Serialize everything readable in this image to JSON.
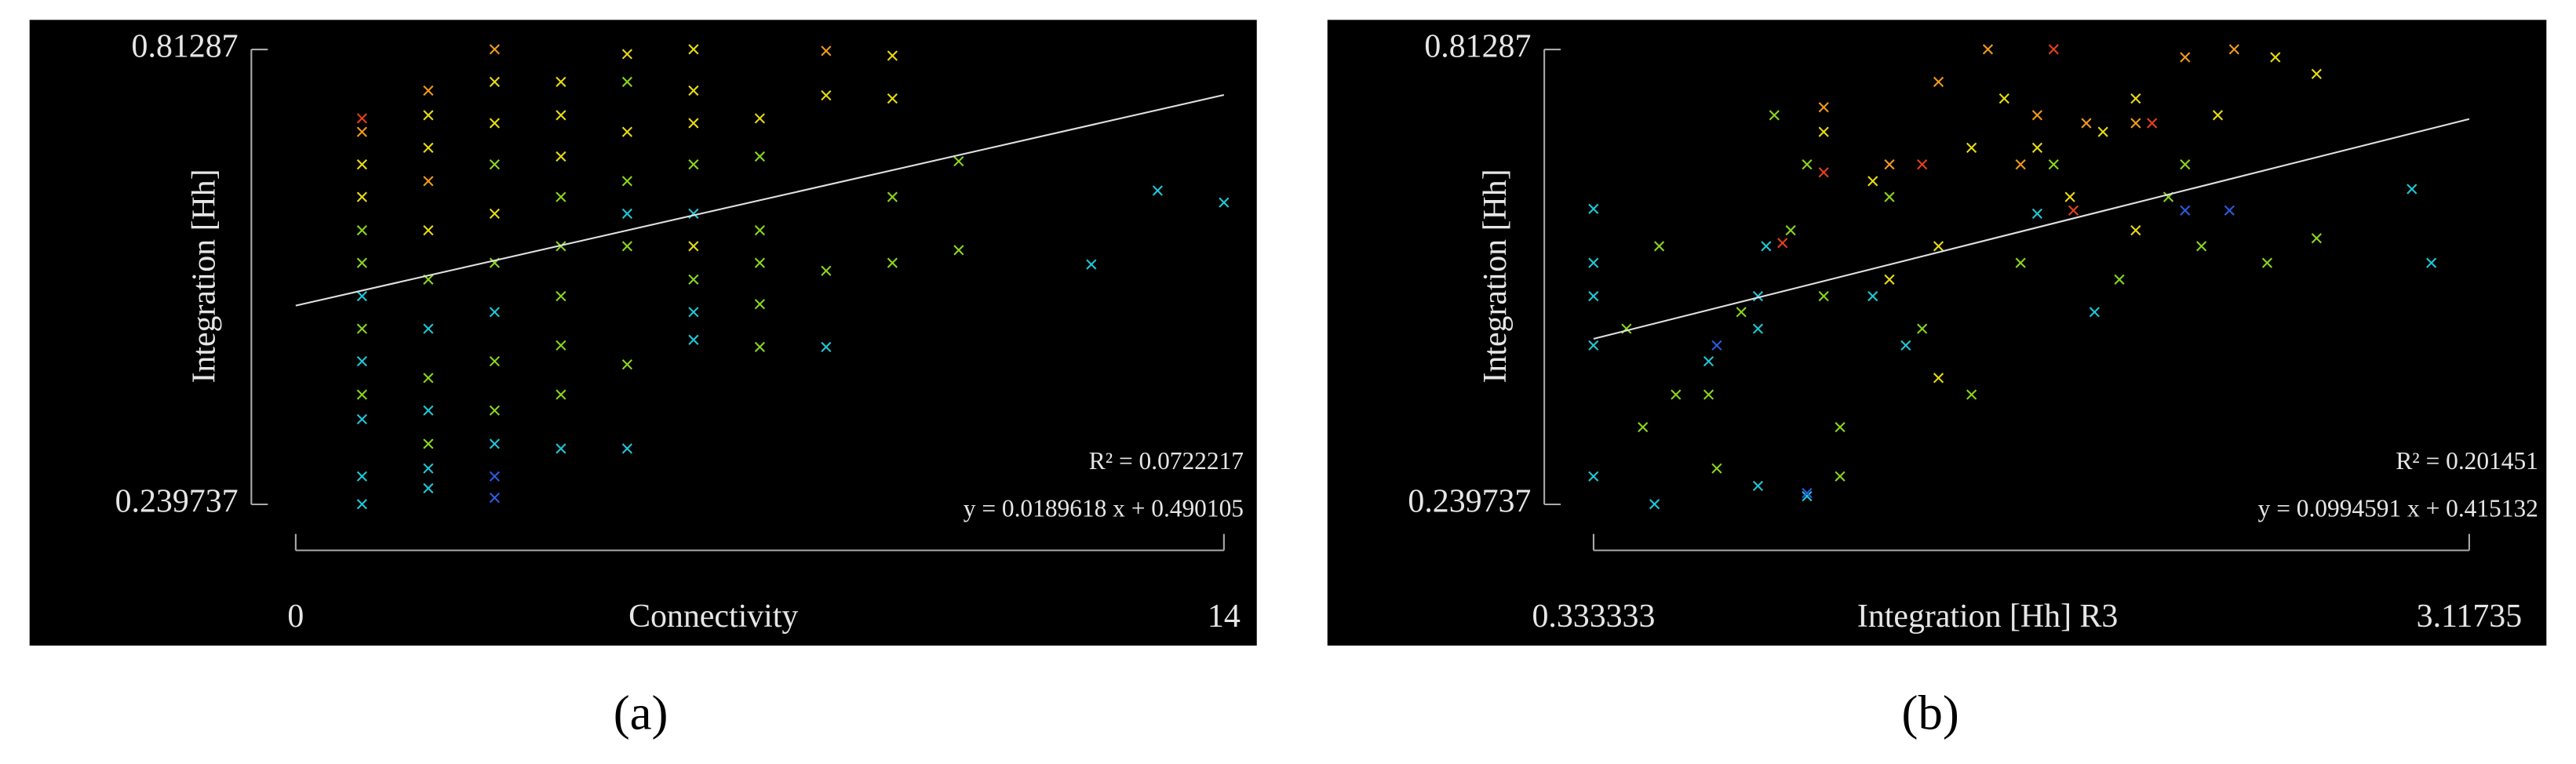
{
  "chart_data": [
    {
      "type": "scatter",
      "panel_label": "(a)",
      "xlabel": "Connectivity",
      "ylabel": "Integration [Hh]",
      "xlim": [
        0,
        14
      ],
      "xticks": [
        0,
        14
      ],
      "ylim": [
        0.239737,
        0.81287
      ],
      "yticks": [
        0.239737,
        0.81287
      ],
      "r2": {
        "value": 0.0722217,
        "label": "R² = 0.0722217"
      },
      "fit": {
        "slope": 0.0189618,
        "intercept": 0.490105,
        "label": "y = 0.0189618 x + 0.490105"
      },
      "series": [
        {
          "color": "#e8401c",
          "x": [
            1
          ],
          "y": [
            0.726
          ]
        },
        {
          "color": "#f09a1c",
          "x": [
            1,
            2,
            2,
            3,
            8
          ],
          "y": [
            0.709,
            0.761,
            0.647,
            0.813,
            0.811
          ]
        },
        {
          "color": "#e8dc10",
          "x": [
            1,
            1,
            2,
            2,
            2,
            3,
            3,
            3,
            4,
            4,
            4,
            5,
            5,
            6,
            6,
            6,
            6,
            7,
            8,
            9,
            9
          ],
          "y": [
            0.668,
            0.627,
            0.73,
            0.689,
            0.585,
            0.772,
            0.72,
            0.606,
            0.772,
            0.73,
            0.678,
            0.807,
            0.709,
            0.813,
            0.761,
            0.72,
            0.565,
            0.726,
            0.755,
            0.805,
            0.751
          ]
        },
        {
          "color": "#8ad61e",
          "x": [
            1,
            1,
            1,
            1,
            2,
            2,
            2,
            3,
            3,
            3,
            3,
            4,
            4,
            4,
            4,
            4,
            5,
            5,
            5,
            5,
            6,
            6,
            7,
            7,
            7,
            7,
            7,
            8,
            9,
            9,
            10,
            10
          ],
          "y": [
            0.585,
            0.544,
            0.461,
            0.378,
            0.523,
            0.399,
            0.316,
            0.668,
            0.544,
            0.42,
            0.358,
            0.627,
            0.565,
            0.502,
            0.44,
            0.378,
            0.772,
            0.647,
            0.565,
            0.416,
            0.668,
            0.523,
            0.678,
            0.585,
            0.544,
            0.492,
            0.438,
            0.534,
            0.627,
            0.544,
            0.672,
            0.56
          ]
        },
        {
          "color": "#1ec8d8",
          "x": [
            1,
            1,
            1,
            1,
            1,
            2,
            2,
            2,
            2,
            3,
            3,
            4,
            5,
            5,
            6,
            6,
            6,
            8,
            12,
            13,
            14
          ],
          "y": [
            0.502,
            0.42,
            0.347,
            0.275,
            0.24,
            0.461,
            0.358,
            0.285,
            0.26,
            0.482,
            0.316,
            0.31,
            0.606,
            0.31,
            0.606,
            0.482,
            0.447,
            0.438,
            0.542,
            0.635,
            0.62
          ]
        },
        {
          "color": "#2c5ce0",
          "x": [
            3,
            3
          ],
          "y": [
            0.275,
            0.248
          ]
        }
      ]
    },
    {
      "type": "scatter",
      "panel_label": "(b)",
      "xlabel": "Integration [Hh] R3",
      "ylabel": "Integration [Hh]",
      "xlim": [
        0.333333,
        3.11735
      ],
      "xticks": [
        0.333333,
        3.11735
      ],
      "ylim": [
        0.239737,
        0.81287
      ],
      "yticks": [
        0.239737,
        0.81287
      ],
      "r2": {
        "value": 0.201451,
        "label": "R² = 0.201451"
      },
      "fit": {
        "slope": 0.0994591,
        "intercept": 0.415132,
        "label": "y = 0.0994591 x + 0.415132"
      },
      "series": [
        {
          "color": "#1ec8d8",
          "x": [
            0.333,
            0.333,
            0.333,
            0.333,
            0.333,
            0.527,
            0.699,
            0.856,
            0.856,
            0.882,
            1.012,
            0.856,
            1.221,
            1.926,
            2.935,
            2.997,
            1.744,
            1.326
          ],
          "y": [
            0.275,
            0.44,
            0.502,
            0.544,
            0.612,
            0.24,
            0.42,
            0.461,
            0.502,
            0.565,
            0.25,
            0.263,
            0.502,
            0.482,
            0.637,
            0.544,
            0.606,
            0.44
          ]
        },
        {
          "color": "#8ad61e",
          "x": [
            0.438,
            0.542,
            0.595,
            0.725,
            0.803,
            0.96,
            1.065,
            1.117,
            1.274,
            1.378,
            1.535,
            1.691,
            1.796,
            2.005,
            2.161,
            2.266,
            2.475,
            2.632,
            2.214,
            1.012,
            0.908,
            0.699,
            0.49,
            1.117
          ],
          "y": [
            0.461,
            0.565,
            0.378,
            0.285,
            0.482,
            0.585,
            0.502,
            0.337,
            0.627,
            0.461,
            0.378,
            0.544,
            0.668,
            0.523,
            0.627,
            0.565,
            0.544,
            0.575,
            0.668,
            0.668,
            0.73,
            0.378,
            0.337,
            0.275
          ]
        },
        {
          "color": "#e8dc10",
          "x": [
            1.065,
            1.221,
            1.43,
            1.535,
            1.639,
            1.848,
            1.953,
            2.057,
            2.318,
            2.501,
            2.632,
            1.43,
            1.274,
            2.057,
            1.744
          ],
          "y": [
            0.709,
            0.647,
            0.565,
            0.689,
            0.751,
            0.627,
            0.709,
            0.585,
            0.73,
            0.803,
            0.782,
            0.399,
            0.523,
            0.751,
            0.689
          ]
        },
        {
          "color": "#f09a1c",
          "x": [
            1.43,
            1.744,
            1.9,
            1.587,
            2.057,
            2.214,
            1.065,
            1.274,
            2.37,
            1.691
          ],
          "y": [
            0.772,
            0.73,
            0.72,
            0.813,
            0.72,
            0.803,
            0.74,
            0.668,
            0.813,
            0.668
          ]
        },
        {
          "color": "#e8401c",
          "x": [
            0.934,
            1.065,
            1.796,
            1.859,
            1.378,
            2.109
          ],
          "y": [
            0.569,
            0.658,
            0.813,
            0.61,
            0.668,
            0.72
          ]
        },
        {
          "color": "#2c5ce0",
          "x": [
            2.214,
            2.355,
            0.725,
            1.012
          ],
          "y": [
            0.61,
            0.61,
            0.44,
            0.254
          ]
        }
      ]
    }
  ]
}
